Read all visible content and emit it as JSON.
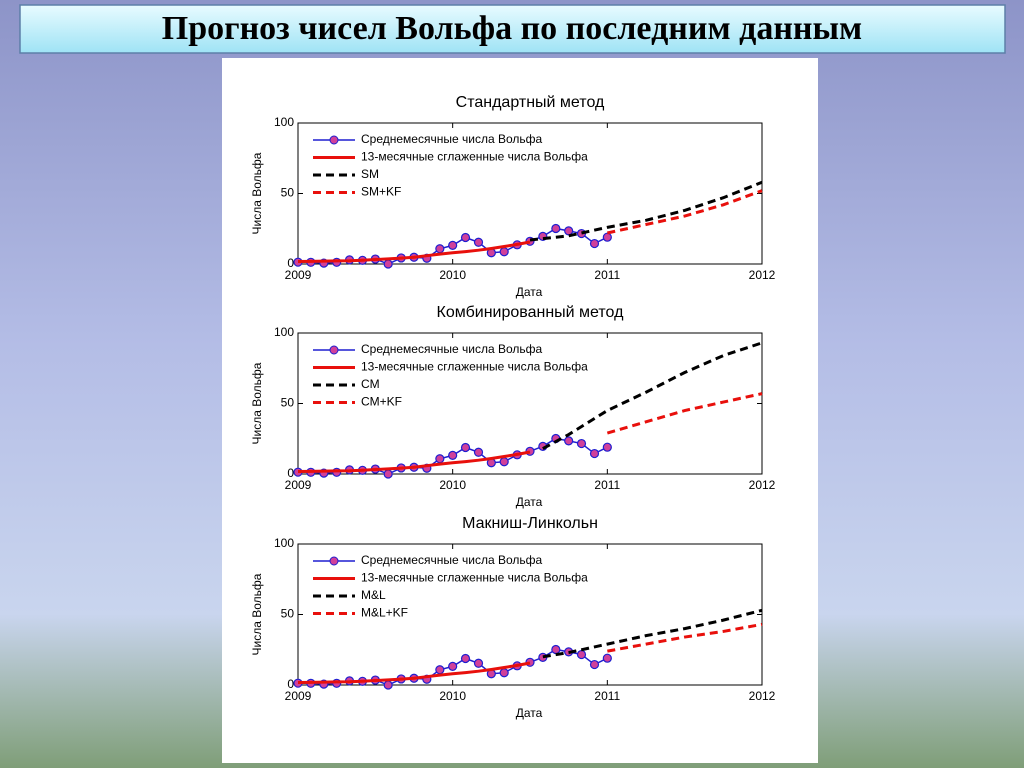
{
  "title": "Прогноз чисел Вольфа по последним данным",
  "chart_data": [
    {
      "type": "line",
      "title": "Стандартный метод",
      "xlabel": "Дата",
      "ylabel": "Числа Вольфа",
      "xlim": [
        2009,
        2012
      ],
      "ylim": [
        0,
        100
      ],
      "xticks": [
        2009,
        2010,
        2011,
        2012
      ],
      "yticks": [
        0,
        50,
        100
      ],
      "legend": "upper left",
      "series": [
        {
          "name": "Среднемесячные числа Вольфа",
          "color": "#1f1fd0",
          "marker_color": "#d0409a",
          "markers": true,
          "dash": false,
          "x": [
            2009,
            2009.083,
            2009.167,
            2009.25,
            2009.333,
            2009.417,
            2009.5,
            2009.583,
            2009.667,
            2009.75,
            2009.833,
            2009.917,
            2010,
            2010.083,
            2010.167,
            2010.25,
            2010.333,
            2010.417,
            2010.5,
            2010.583,
            2010.667,
            2010.75,
            2010.833,
            2010.917,
            2011
          ],
          "values": [
            1.3,
            1.2,
            0.6,
            1.2,
            2.9,
            2.6,
            3.5,
            0,
            4.3,
            4.8,
            4.1,
            10.8,
            13.2,
            18.8,
            15.4,
            8,
            8.7,
            13.6,
            16.1,
            19.6,
            25.2,
            23.5,
            21.6,
            14.5,
            19
          ]
        },
        {
          "name": "13-месячные сглаженные числа Вольфа",
          "color": "#e8100c",
          "markers": false,
          "dash": false,
          "x": [
            2009,
            2009.083,
            2009.167,
            2009.25,
            2009.333,
            2009.417,
            2009.5,
            2009.583,
            2009.667,
            2009.75,
            2009.833,
            2009.917,
            2010,
            2010.083,
            2010.167,
            2010.25,
            2010.333,
            2010.417,
            2010.5
          ],
          "values": [
            1.8,
            1.9,
            2,
            2.2,
            2.3,
            2.7,
            3.2,
            3.6,
            4.2,
            4.8,
            5.9,
            7,
            8,
            8.8,
            9.8,
            11,
            12.4,
            13.9,
            15.6
          ]
        },
        {
          "name": "SM",
          "color": "#000000",
          "markers": false,
          "dash": true,
          "x": [
            2010.5,
            2010.75,
            2011,
            2011.25,
            2011.5,
            2011.75,
            2012
          ],
          "values": [
            17,
            20,
            26,
            31,
            38,
            47,
            58
          ]
        },
        {
          "name": "SM+KF",
          "color": "#e8100c",
          "markers": false,
          "dash": true,
          "x": [
            2011,
            2011.25,
            2011.5,
            2011.75,
            2012
          ],
          "values": [
            22,
            28,
            34,
            42,
            52
          ]
        }
      ]
    },
    {
      "type": "line",
      "title": "Комбинированный метод",
      "xlabel": "Дата",
      "ylabel": "Числа Вольфа",
      "xlim": [
        2009,
        2012
      ],
      "ylim": [
        0,
        100
      ],
      "xticks": [
        2009,
        2010,
        2011,
        2012
      ],
      "yticks": [
        0,
        50,
        100
      ],
      "legend": "upper left",
      "series": [
        {
          "name": "Среднемесячные числа Вольфа",
          "color": "#1f1fd0",
          "marker_color": "#d0409a",
          "markers": true,
          "dash": false,
          "x": [
            2009,
            2009.083,
            2009.167,
            2009.25,
            2009.333,
            2009.417,
            2009.5,
            2009.583,
            2009.667,
            2009.75,
            2009.833,
            2009.917,
            2010,
            2010.083,
            2010.167,
            2010.25,
            2010.333,
            2010.417,
            2010.5,
            2010.583,
            2010.667,
            2010.75,
            2010.833,
            2010.917,
            2011
          ],
          "values": [
            1.3,
            1.2,
            0.6,
            1.2,
            2.9,
            2.6,
            3.5,
            0,
            4.3,
            4.8,
            4.1,
            10.8,
            13.2,
            18.8,
            15.4,
            8,
            8.7,
            13.6,
            16.1,
            19.6,
            25.2,
            23.5,
            21.6,
            14.5,
            19
          ]
        },
        {
          "name": "13-месячные сглаженные числа Вольфа",
          "color": "#e8100c",
          "markers": false,
          "dash": false,
          "x": [
            2009,
            2009.083,
            2009.167,
            2009.25,
            2009.333,
            2009.417,
            2009.5,
            2009.583,
            2009.667,
            2009.75,
            2009.833,
            2009.917,
            2010,
            2010.083,
            2010.167,
            2010.25,
            2010.333,
            2010.417,
            2010.5
          ],
          "values": [
            1.8,
            1.9,
            2,
            2.2,
            2.3,
            2.7,
            3.2,
            3.6,
            4.2,
            4.8,
            5.9,
            7,
            8,
            8.8,
            9.8,
            11,
            12.4,
            13.9,
            15.6
          ]
        },
        {
          "name": "CM",
          "color": "#000000",
          "markers": false,
          "dash": true,
          "x": [
            2010.583,
            2010.75,
            2011,
            2011.25,
            2011.5,
            2011.75,
            2012
          ],
          "values": [
            18,
            28,
            45,
            58,
            72,
            84,
            93
          ]
        },
        {
          "name": "CM+KF",
          "color": "#e8100c",
          "markers": false,
          "dash": true,
          "x": [
            2011,
            2011.25,
            2011.5,
            2011.75,
            2012
          ],
          "values": [
            29,
            37,
            45,
            51,
            57
          ]
        }
      ]
    },
    {
      "type": "line",
      "title": "Макниш-Линкольн",
      "xlabel": "Дата",
      "ylabel": "Числа Вольфа",
      "xlim": [
        2009,
        2012
      ],
      "ylim": [
        0,
        100
      ],
      "xticks": [
        2009,
        2010,
        2011,
        2012
      ],
      "yticks": [
        0,
        50,
        100
      ],
      "legend": "upper left",
      "series": [
        {
          "name": "Среднемесячные числа Вольфа",
          "color": "#1f1fd0",
          "marker_color": "#d0409a",
          "markers": true,
          "dash": false,
          "x": [
            2009,
            2009.083,
            2009.167,
            2009.25,
            2009.333,
            2009.417,
            2009.5,
            2009.583,
            2009.667,
            2009.75,
            2009.833,
            2009.917,
            2010,
            2010.083,
            2010.167,
            2010.25,
            2010.333,
            2010.417,
            2010.5,
            2010.583,
            2010.667,
            2010.75,
            2010.833,
            2010.917,
            2011
          ],
          "values": [
            1.3,
            1.2,
            0.6,
            1.2,
            2.9,
            2.6,
            3.5,
            0,
            4.3,
            4.8,
            4.1,
            10.8,
            13.2,
            18.8,
            15.4,
            8,
            8.7,
            13.6,
            16.1,
            19.6,
            25.2,
            23.5,
            21.6,
            14.5,
            19
          ]
        },
        {
          "name": "13-месячные сглаженные числа Вольфа",
          "color": "#e8100c",
          "markers": false,
          "dash": false,
          "x": [
            2009,
            2009.083,
            2009.167,
            2009.25,
            2009.333,
            2009.417,
            2009.5,
            2009.583,
            2009.667,
            2009.75,
            2009.833,
            2009.917,
            2010,
            2010.083,
            2010.167,
            2010.25,
            2010.333,
            2010.417,
            2010.5
          ],
          "values": [
            1.8,
            1.9,
            2,
            2.2,
            2.3,
            2.7,
            3.2,
            3.6,
            4.2,
            4.8,
            5.9,
            7,
            8,
            8.8,
            9.8,
            11,
            12.4,
            13.9,
            15.6
          ]
        },
        {
          "name": "M&L",
          "color": "#000000",
          "markers": false,
          "dash": true,
          "x": [
            2010.583,
            2010.75,
            2011,
            2011.25,
            2011.5,
            2011.75,
            2012
          ],
          "values": [
            20,
            23,
            29,
            35,
            40,
            46,
            53
          ]
        },
        {
          "name": "M&L+KF",
          "color": "#e8100c",
          "markers": false,
          "dash": true,
          "x": [
            2011,
            2011.25,
            2011.5,
            2011.75,
            2012
          ],
          "values": [
            24,
            29,
            34,
            38,
            43
          ]
        }
      ]
    }
  ]
}
